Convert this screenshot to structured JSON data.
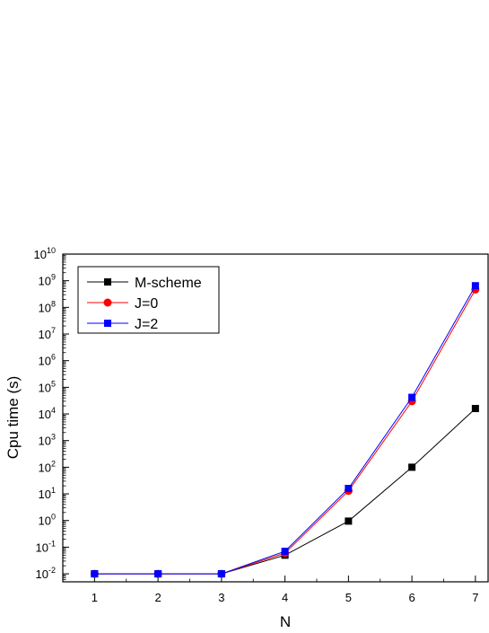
{
  "chart_data": {
    "type": "line",
    "title": "",
    "xlabel": "N",
    "ylabel": "Cpu time (s)",
    "y_scale": "log",
    "x": [
      1,
      2,
      3,
      4,
      5,
      6,
      7
    ],
    "x_ticks": [
      "1",
      "2",
      "3",
      "4",
      "5",
      "6",
      "7"
    ],
    "xlim": [
      0.5,
      7.2
    ],
    "ylim": [
      0.005,
      10000000000
    ],
    "y_tick_exponents": [
      -2,
      -1,
      0,
      1,
      2,
      3,
      4,
      5,
      6,
      7,
      8,
      9,
      10
    ],
    "y_tick_base": "10",
    "grid": false,
    "legend_position": "top-left",
    "series": [
      {
        "name": "M-scheme",
        "color": "#000000",
        "marker": "square",
        "values": [
          0.01,
          0.01,
          0.01,
          0.05,
          0.95,
          100,
          16000
        ]
      },
      {
        "name": "J=0",
        "color": "#ff0000",
        "marker": "circle",
        "values": [
          0.01,
          0.01,
          0.01,
          0.06,
          13,
          30000,
          470000000
        ]
      },
      {
        "name": "J=2",
        "color": "#0000ff",
        "marker": "square",
        "values": [
          0.01,
          0.01,
          0.01,
          0.07,
          16,
          42000,
          650000000
        ]
      }
    ]
  }
}
